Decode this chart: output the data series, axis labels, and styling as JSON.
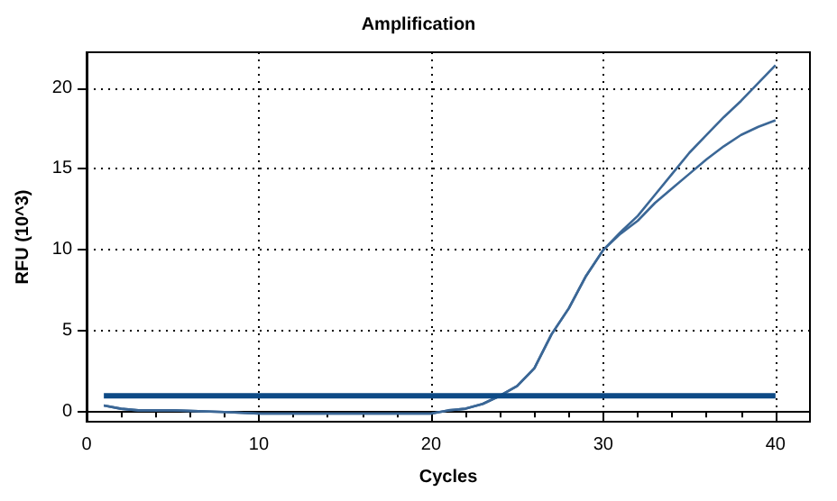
{
  "chart_data": {
    "type": "line",
    "title": "Amplification",
    "xlabel": "Cycles",
    "ylabel": "RFU (10^3)",
    "xlim": [
      0,
      42
    ],
    "xticks": [
      0,
      10,
      20,
      30,
      40
    ],
    "ylim": [
      -0.6,
      22.2
    ],
    "yticks": [
      0,
      5,
      10,
      15,
      20
    ],
    "grid": true,
    "legend": false,
    "marker": "none",
    "line_style": "solid",
    "series": [
      {
        "color": "#3b6796",
        "x": [
          1,
          2,
          3,
          5,
          8,
          10,
          15,
          18,
          20,
          21,
          22,
          23,
          24,
          25,
          26,
          27,
          28,
          29,
          30,
          31,
          32,
          33,
          34,
          35,
          36,
          37,
          38,
          39,
          40
        ],
        "values": [
          0.4,
          0.2,
          0.1,
          0.1,
          0,
          -0.1,
          -0.1,
          -0.1,
          -0.1,
          0.1,
          0.2,
          0.5,
          1,
          1.6,
          2.7,
          4.8,
          6.4,
          8.4,
          10,
          11.1,
          12.1,
          13.4,
          14.7,
          16.0,
          17.1,
          18.2,
          19.2,
          20.3,
          21.4
        ]
      },
      {
        "color": "#3b6796",
        "x": [
          1,
          2,
          3,
          5,
          8,
          10,
          15,
          18,
          20,
          21,
          22,
          23,
          24,
          25,
          26,
          27,
          28,
          29,
          30,
          31,
          32,
          33,
          34,
          35,
          36,
          37,
          38,
          39,
          40
        ],
        "values": [
          0.4,
          0.2,
          0.1,
          0.1,
          0,
          -0.1,
          -0.1,
          -0.1,
          -0.1,
          0.1,
          0.2,
          0.5,
          1,
          1.6,
          2.7,
          4.8,
          6.4,
          8.4,
          10,
          11,
          11.8,
          12.9,
          13.8,
          14.7,
          15.6,
          16.4,
          17.1,
          17.6,
          18.0
        ]
      },
      {
        "color": "#0d4a86",
        "x": [
          1,
          40
        ],
        "values": [
          1,
          1
        ]
      }
    ]
  }
}
